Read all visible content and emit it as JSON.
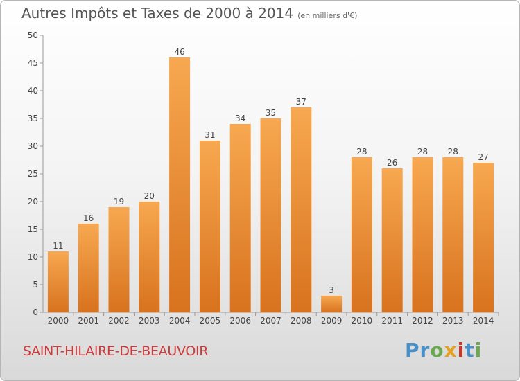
{
  "chart_data": {
    "type": "bar",
    "title": "Autres Impôts et Taxes de 2000 à 2014",
    "unit": "(en milliers d'€)",
    "categories": [
      "2000",
      "2001",
      "2002",
      "2003",
      "2004",
      "2005",
      "2006",
      "2007",
      "2008",
      "2009",
      "2010",
      "2011",
      "2012",
      "2013",
      "2014"
    ],
    "values": [
      11,
      16,
      19,
      20,
      46,
      31,
      34,
      35,
      37,
      3,
      28,
      26,
      28,
      28,
      27
    ],
    "ylim": [
      0,
      50
    ],
    "yticks": [
      0,
      5,
      10,
      15,
      20,
      25,
      30,
      35,
      40,
      45,
      50
    ],
    "grid": false,
    "bar_color": "#f0a050"
  },
  "commune": "SAINT-HILAIRE-DE-BEAUVOIR",
  "logo": {
    "letters": [
      "P",
      "r",
      "o",
      "x",
      "i",
      "t",
      "i"
    ],
    "colors": [
      "#4a90c8",
      "#4a90c8",
      "#6aa84f",
      "#e8a020",
      "#c0392b",
      "#4a90c8",
      "#6aa84f"
    ]
  }
}
